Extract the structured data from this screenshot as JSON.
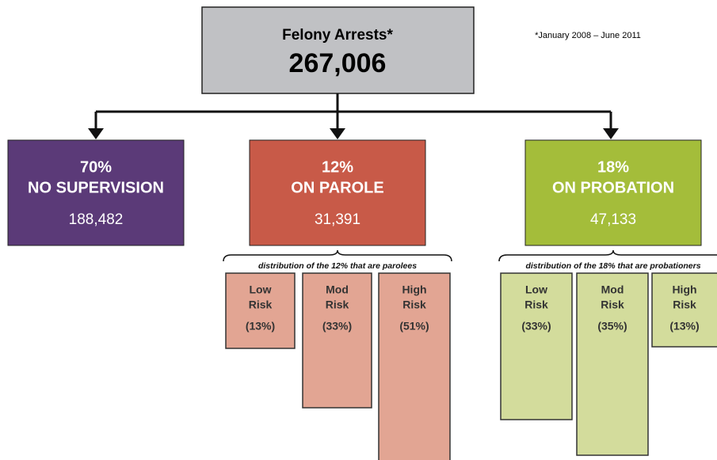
{
  "top": {
    "title": "Felony Arrests*",
    "value": "267,006"
  },
  "note": "*January 2008 – June 2011",
  "groups": [
    {
      "percent": "70%",
      "label": "NO SUPERVISION",
      "count": "188,482"
    },
    {
      "percent": "12%",
      "label": "ON PAROLE",
      "count": "31,391"
    },
    {
      "percent": "18%",
      "label": "ON PROBATION",
      "count": "47,133"
    }
  ],
  "distributions": [
    {
      "caption": "distribution of the 12% that are parolees",
      "items": [
        {
          "level": "Low",
          "risk": "Risk",
          "share": "(13%)"
        },
        {
          "level": "Mod",
          "risk": "Risk",
          "share": "(33%)"
        },
        {
          "level": "High",
          "risk": "Risk",
          "share": "(51%)"
        }
      ]
    },
    {
      "caption": "distribution of the 18% that are probationers",
      "items": [
        {
          "level": "Low",
          "risk": "Risk",
          "share": "(33%)"
        },
        {
          "level": "Mod",
          "risk": "Risk",
          "share": "(35%)"
        },
        {
          "level": "High",
          "risk": "Risk",
          "share": "(13%)"
        }
      ]
    }
  ]
}
